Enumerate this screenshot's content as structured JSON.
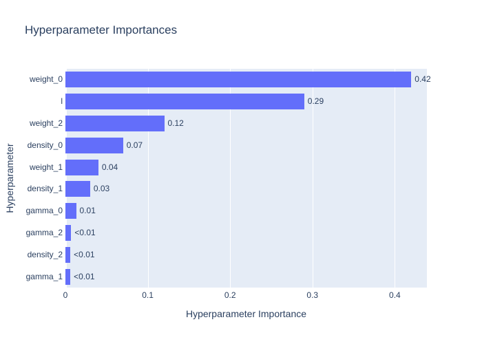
{
  "chart_data": {
    "type": "bar",
    "orientation": "horizontal",
    "title": "Hyperparameter Importances",
    "xlabel": "Hyperparameter Importance",
    "ylabel": "Hyperparameter",
    "categories": [
      "weight_0",
      "l",
      "weight_2",
      "density_0",
      "weight_1",
      "density_1",
      "gamma_0",
      "gamma_2",
      "density_2",
      "gamma_1"
    ],
    "values": [
      0.42,
      0.29,
      0.12,
      0.07,
      0.04,
      0.03,
      0.013,
      0.007,
      0.006,
      0.006
    ],
    "value_labels": [
      "0.42",
      "0.29",
      "0.12",
      "0.07",
      "0.04",
      "0.03",
      "0.01",
      "<0.01",
      "<0.01",
      "<0.01"
    ],
    "xlim": [
      0,
      0.439
    ],
    "xtick_values": [
      0,
      0.1,
      0.2,
      0.3,
      0.4
    ],
    "xtick_labels": [
      "0",
      "0.1",
      "0.2",
      "0.3",
      "0.4"
    ],
    "grid": true,
    "legend": false,
    "colors": {
      "bar": "#636efa",
      "plot_background": "#e5ecf6",
      "gridline": "#ffffff",
      "font": "#2a3f5f"
    }
  }
}
